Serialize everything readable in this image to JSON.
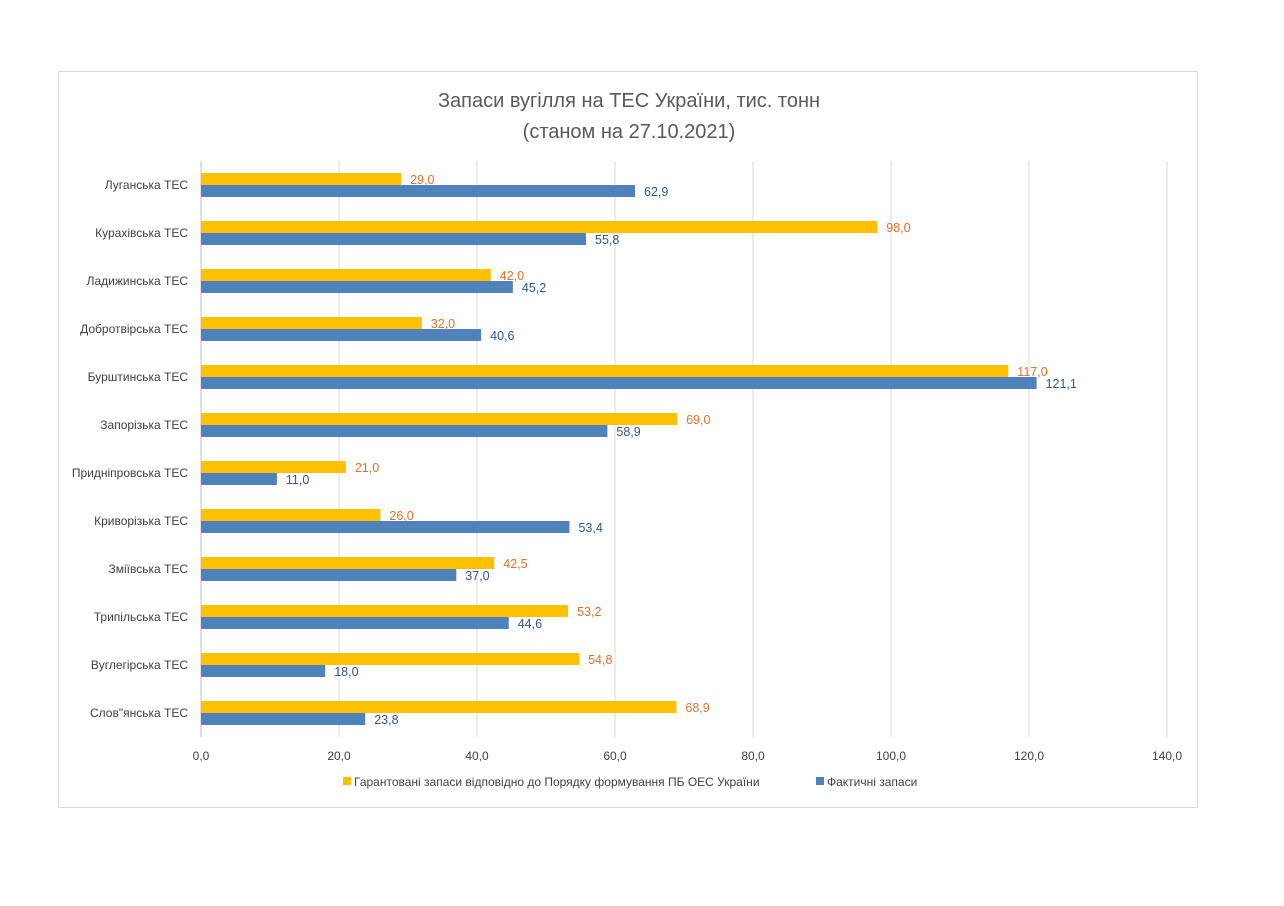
{
  "chart_data": {
    "type": "bar",
    "orientation": "horizontal",
    "title": [
      "Запаси вугілля на ТЕС України, тис. тонн",
      "(станом на 27.10.2021)"
    ],
    "categories": [
      "Луганська ТЕС",
      "Курахівська ТЕС",
      "Ладижинська ТЕС",
      "Добротвірська ТЕС",
      "Бурштинська ТЕС",
      "Запорізька ТЕС",
      "Придніпровська ТЕС",
      "Криворізька ТЕС",
      "Зміївська ТЕС",
      "Трипільська ТЕС",
      "Вуглегірська ТЕС",
      "Слов\"янська ТЕС"
    ],
    "series": [
      {
        "name": "Гарантовані запаси відповідно до Порядку формування ПБ ОЕС України",
        "color": "#ffc000",
        "values": [
          29.0,
          98.0,
          42.0,
          32.0,
          117.0,
          69.0,
          21.0,
          26.0,
          42.5,
          53.2,
          54.8,
          68.9
        ],
        "labels": [
          "29,0",
          "98,0",
          "42,0",
          "32,0",
          "117,0",
          "69,0",
          "21,0",
          "26,0",
          "42,5",
          "53,2",
          "54,8",
          "68,9"
        ]
      },
      {
        "name": "Фактичні запаси",
        "color": "#4f81bd",
        "values": [
          62.9,
          55.8,
          45.2,
          40.6,
          121.1,
          58.9,
          11.0,
          53.4,
          37.0,
          44.6,
          18.0,
          23.8
        ],
        "labels": [
          "62,9",
          "55,8",
          "45,2",
          "40,6",
          "121,1",
          "58,9",
          "11,0",
          "53,4",
          "37,0",
          "44,6",
          "18,0",
          "23,8"
        ]
      }
    ],
    "xlim": [
      0,
      140
    ],
    "xticks": [
      0,
      20,
      40,
      60,
      80,
      100,
      120,
      140
    ],
    "xtick_labels": [
      "0,0",
      "20,0",
      "40,0",
      "60,0",
      "80,0",
      "100,0",
      "120,0",
      "140,0"
    ],
    "grid": "vertical",
    "legend_position": "bottom"
  }
}
